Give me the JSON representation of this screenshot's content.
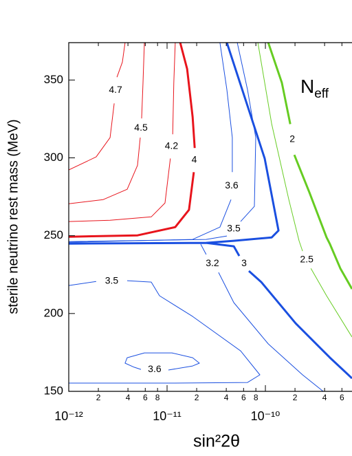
{
  "chart_data": {
    "type": "contour",
    "x_label": "sin²2θ",
    "y_label": "sterile neutrino rest mass (MeV)",
    "annotation": {
      "text": "N",
      "subscript": "eff"
    },
    "xscale": "log",
    "xlim": [
      1e-12,
      7.6e-10
    ],
    "ylim": [
      150,
      374
    ],
    "xticks": [
      {
        "value": 1e-12,
        "label": "10⁻¹²"
      },
      {
        "value": 2e-12,
        "label": "2"
      },
      {
        "value": 4e-12,
        "label": "4"
      },
      {
        "value": 6e-12,
        "label": "6"
      },
      {
        "value": 8e-12,
        "label": "8"
      },
      {
        "value": 1e-11,
        "label": "10⁻¹¹"
      },
      {
        "value": 2e-11,
        "label": "2"
      },
      {
        "value": 4e-11,
        "label": "4"
      },
      {
        "value": 6e-11,
        "label": "6"
      },
      {
        "value": 8e-11,
        "label": "8"
      },
      {
        "value": 1e-10,
        "label": "10⁻¹⁰"
      },
      {
        "value": 2e-10,
        "label": "2"
      },
      {
        "value": 4e-10,
        "label": "4"
      },
      {
        "value": 6e-10,
        "label": "6"
      }
    ],
    "yticks": [
      150,
      200,
      250,
      300,
      350
    ],
    "contours": [
      {
        "level": 4.7,
        "color": "#e8141c",
        "linewidth": 1,
        "x": [
          1e-12,
          1.9e-12,
          2.63e-12,
          2.9e-12,
          null,
          3.09e-12,
          3.51e-12,
          3.74e-12
        ],
        "y": [
          292.2,
          300.6,
          313.0,
          335.0,
          null,
          351.8,
          361.5,
          374
        ]
      },
      {
        "level": 4.5,
        "color": "#e8141c",
        "linewidth": 1,
        "x": [
          1e-12,
          2.24e-12,
          3.93e-12,
          5e-12,
          5.34e-12,
          null,
          5.51e-12,
          5.69e-12,
          5.88e-12
        ],
        "y": [
          270.5,
          273.2,
          279.8,
          295.2,
          313.0,
          null,
          325.3,
          348.2,
          374
        ]
      },
      {
        "level": 4.2,
        "color": "#e8141c",
        "linewidth": 1,
        "x": [
          1e-12,
          2.63e-12,
          6.9e-12,
          9.53e-12,
          1.08e-11,
          null,
          1.14e-11,
          1.17e-11,
          1.21e-11
        ],
        "y": [
          259.1,
          259.9,
          262.1,
          271,
          299.6,
          null,
          315.1,
          348.2,
          374
        ]
      },
      {
        "level": 4,
        "color": "#e8141c",
        "linewidth": 3,
        "x": [
          1e-12,
          5e-12,
          1.21e-11,
          1.67e-11,
          1.87e-11,
          null,
          1.91e-11,
          1.82e-11,
          1.6e-11,
          1.36e-11
        ],
        "y": [
          249.3,
          250.2,
          255.5,
          266.6,
          290.8,
          null,
          306.3,
          326.2,
          357.1,
          374
        ]
      },
      {
        "level": 3.6,
        "color": "#1a4fe0",
        "linewidth": 1,
        "x": [
          1e-12,
          1.82e-11,
          3.45e-11,
          4.47e-11,
          null,
          4.61e-11,
          4.61e-11,
          4.06e-11,
          3.45e-11
        ],
        "y": [
          245.8,
          247.6,
          255.5,
          273.2,
          null,
          290.8,
          313.0,
          343.8,
          374
        ]
      },
      {
        "level": 3.5,
        "color": "#1a4fe0",
        "linewidth": 1,
        "x": [
          1e-12,
          2.5e-11,
          4.06e-11,
          null,
          5.6e-11,
          7.73e-11,
          7.98e-11,
          6.58e-11,
          5.17e-11
        ],
        "y": [
          246.2,
          247.6,
          249.8,
          null,
          259.1,
          268.8,
          313.0,
          343.8,
          374
        ]
      },
      {
        "level": 3,
        "color": "#1a4fe0",
        "linewidth": 3,
        "x": [
          1e-12,
          2.5e-11,
          4.77e-11,
          5.42e-11,
          null,
          6.79e-11,
          9.08e-11,
          2.03e-10,
          4.54e-10,
          7.6e-10,
          null,
          4.06e-11,
          9.84e-11,
          1.36e-10,
          1.16e-10,
          4.77e-11,
          2.5e-11
        ],
        "y": [
          244.9,
          245.4,
          243.2,
          237,
          null,
          227.3,
          220.2,
          193.7,
          171.6,
          158.4,
          null,
          374,
          299.6,
          253.3,
          248.9,
          246.7,
          245.4
        ]
      },
      {
        "level": 3.2,
        "color": "#1a4fe0",
        "linewidth": 1,
        "x": [
          2.2e-11,
          2.5e-11,
          null,
          3.34e-11,
          4.77e-11,
          1.07e-10,
          2.39e-10,
          3.87e-10
        ],
        "y": [
          244.5,
          237.9,
          null,
          226.4,
          207,
          180.5,
          160.6,
          150
        ]
      },
      {
        "level": 3.5,
        "color": "#1a4fe0",
        "linewidth": 1,
        "x": [
          1e-12,
          1.9e-12,
          null,
          3.93e-12,
          6.9e-12,
          8.38e-12,
          1.82e-11,
          5.6e-11,
          8.79e-11,
          6.58e-11,
          1.12e-11,
          1e-12
        ],
        "y": [
          218,
          220.6,
          null,
          221.1,
          220.2,
          211.4,
          198.1,
          176,
          160.6,
          155.7,
          155.3,
          155.3
        ]
      },
      {
        "level": 3.6,
        "color": "#1a4fe0",
        "linewidth": 1,
        "x": [
          4.62e-12,
          5.42e-12,
          null,
          1.03e-11,
          1.82e-11,
          2.13e-11,
          1.82e-11,
          1.12e-11,
          5.88e-12,
          3.93e-12,
          3.74e-12,
          4.62e-12
        ],
        "y": [
          165.5,
          164.1,
          null,
          163.7,
          166.3,
          168.1,
          171.6,
          174.7,
          174.7,
          171.6,
          168.1,
          165.5
        ]
      },
      {
        "level": 2.5,
        "color": "#66cc22",
        "linewidth": 1,
        "x": [
          8.38e-11,
          1.16e-10,
          1.73e-10,
          2.2e-10,
          2.39e-10,
          null,
          2.9e-10,
          4.19e-10,
          7.6e-10
        ],
        "y": [
          374,
          321.7,
          273.2,
          246.7,
          240.1,
          null,
          229,
          211.4,
          184.9
        ]
      },
      {
        "level": 2,
        "color": "#66cc22",
        "linewidth": 3,
        "x": [
          1.07e-10,
          1.47e-10,
          1.79e-10,
          null,
          1.97e-10,
          2.81e-10,
          4.19e-10,
          4.54e-10,
          5.78e-10,
          7.6e-10
        ],
        "y": [
          374,
          348.2,
          321.7,
          null,
          301.9,
          277.6,
          248.9,
          244.5,
          229,
          215.8
        ]
      }
    ]
  }
}
